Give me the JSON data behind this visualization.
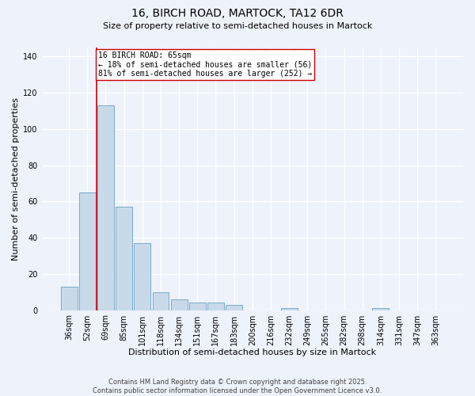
{
  "title": "16, BIRCH ROAD, MARTOCK, TA12 6DR",
  "subtitle": "Size of property relative to semi-detached houses in Martock",
  "xlabel": "Distribution of semi-detached houses by size in Martock",
  "ylabel": "Number of semi-detached properties",
  "categories": [
    "36sqm",
    "52sqm",
    "69sqm",
    "85sqm",
    "101sqm",
    "118sqm",
    "134sqm",
    "151sqm",
    "167sqm",
    "183sqm",
    "200sqm",
    "216sqm",
    "232sqm",
    "249sqm",
    "265sqm",
    "282sqm",
    "298sqm",
    "314sqm",
    "331sqm",
    "347sqm",
    "363sqm"
  ],
  "values": [
    13,
    65,
    113,
    57,
    37,
    10,
    6,
    4,
    4,
    3,
    0,
    0,
    1,
    0,
    0,
    0,
    0,
    1,
    0,
    0,
    0
  ],
  "bar_color": "#c8daea",
  "bar_edge_color": "#7aaac8",
  "property_line_x": 1.5,
  "property_line_color": "#cc0000",
  "annotation_text": "16 BIRCH ROAD: 65sqm\n← 18% of semi-detached houses are smaller (56)\n81% of semi-detached houses are larger (252) →",
  "annotation_box_color": "#ffffff",
  "annotation_box_edge": "#cc0000",
  "ylim": [
    0,
    145
  ],
  "yticks": [
    0,
    20,
    40,
    60,
    80,
    100,
    120,
    140
  ],
  "footer": "Contains HM Land Registry data © Crown copyright and database right 2025.\nContains public sector information licensed under the Open Government Licence v3.0.",
  "background_color": "#eef2fb",
  "grid_color": "#ffffff",
  "title_fontsize": 10,
  "subtitle_fontsize": 8,
  "axis_label_fontsize": 8,
  "tick_fontsize": 7,
  "footer_fontsize": 6,
  "annotation_fontsize": 7
}
